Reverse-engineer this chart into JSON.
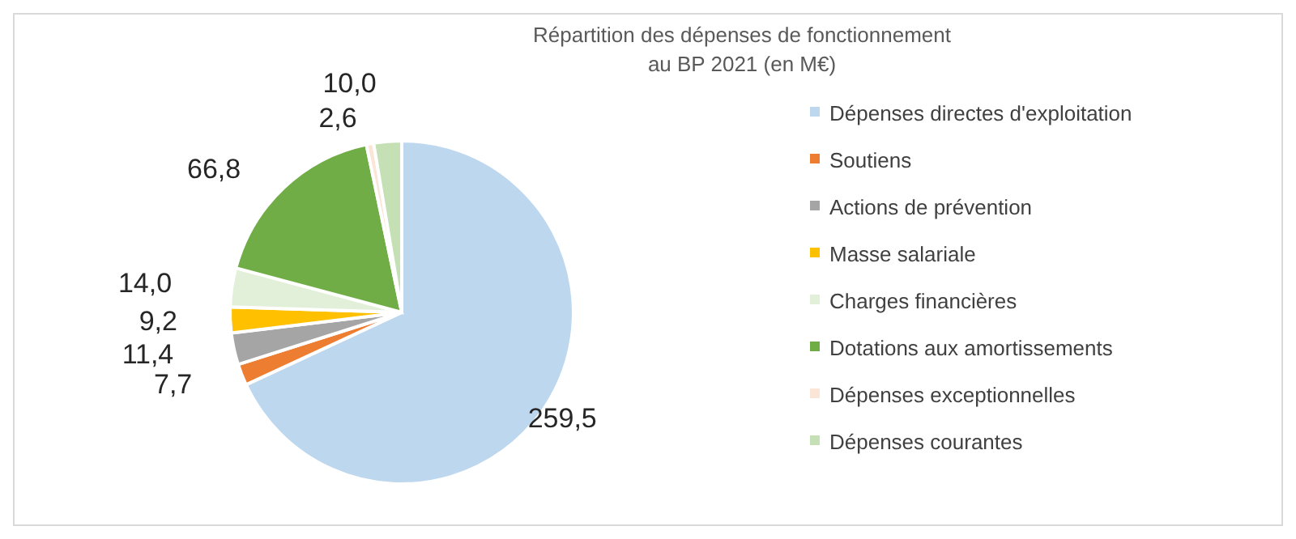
{
  "chart_data": {
    "type": "pie",
    "title": "Répartition  des dépenses de fonctionnement\nau BP 2021 (en M€)",
    "categories": [
      "Dépenses directes d'exploitation",
      "Soutiens",
      "Actions de prévention",
      "Masse salariale",
      "Charges financières",
      "Dotations aux amortissements",
      "Dépenses exceptionnelles",
      "Dépenses courantes"
    ],
    "values": [
      259.5,
      7.7,
      11.4,
      9.2,
      14.0,
      66.8,
      2.6,
      10.0
    ],
    "value_labels": [
      "259,5",
      "7,7",
      "11,4",
      "9,2",
      "14,0",
      "66,8",
      "2,6",
      "10,0"
    ],
    "colors": [
      "#bdd7ee",
      "#ed7d31",
      "#a5a5a5",
      "#ffc000",
      "#e2f0d9",
      "#70ad47",
      "#fbe5d6",
      "#c5e0b4"
    ],
    "legend": "right"
  }
}
